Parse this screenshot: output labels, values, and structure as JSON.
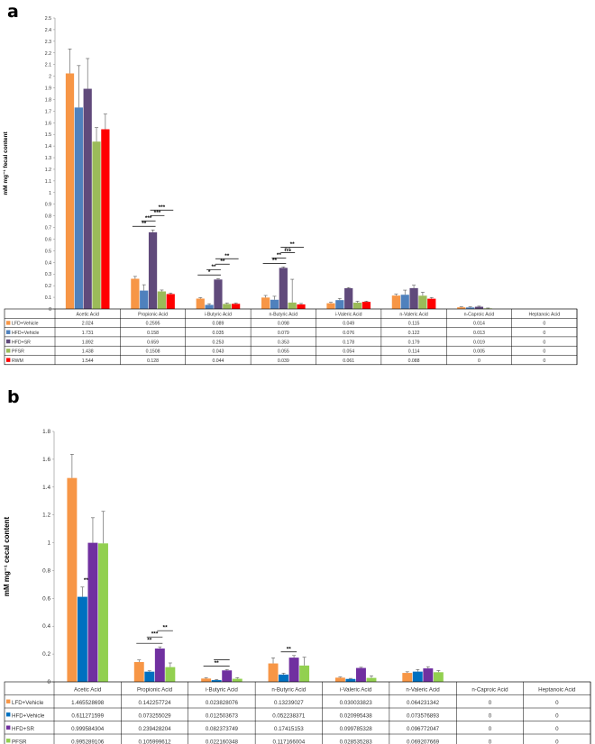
{
  "chart_data": [
    {
      "panel": "a",
      "type": "bar",
      "title": "",
      "ylabel": "mM mg⁻¹ fecal content",
      "xlabel": "",
      "ylim": [
        0,
        2.5
      ],
      "ytick_step": 0.1,
      "grid": false,
      "legend": "table-below",
      "categories": [
        "Acetic Acid",
        "Propionic Acid",
        "i-Butyric Acid",
        "n-Butyric Acid",
        "i-Valeric Acid",
        "n-Valeric Acid",
        "n-Caproic Acid",
        "Heptanoic Acid"
      ],
      "series": [
        {
          "name": "LFD+Vehicle",
          "color": "#f79646",
          "values": [
            2.024,
            0.2595,
            0.089,
            0.098,
            0.049,
            0.115,
            0.014,
            0
          ],
          "labels": [
            "2.024",
            "0.2595",
            "0.089",
            "0.098",
            "0.049",
            "0.115",
            "0.014",
            "0"
          ],
          "errors": [
            0.21,
            0.02,
            0.008,
            0.018,
            0.008,
            0.012,
            0.004,
            0
          ]
        },
        {
          "name": "HFD+Vehicle",
          "color": "#4f81bd",
          "values": [
            1.731,
            0.158,
            0.035,
            0.079,
            0.076,
            0.122,
            0.013,
            0
          ],
          "labels": [
            "1.731",
            "0.158",
            "0.035",
            "0.079",
            "0.076",
            "0.122",
            "0.013",
            "0"
          ],
          "errors": [
            0.36,
            0.05,
            0.01,
            0.03,
            0.015,
            0.04,
            0.005,
            0
          ]
        },
        {
          "name": "HFD+SR",
          "color": "#604a7b",
          "values": [
            1.892,
            0.659,
            0.253,
            0.353,
            0.178,
            0.179,
            0.019,
            0
          ],
          "labels": [
            "1.892",
            "0.659",
            "0.253",
            "0.353",
            "0.178",
            "0.179",
            "0.019",
            "0"
          ],
          "errors": [
            0.26,
            0.02,
            0.008,
            0.008,
            0.006,
            0.025,
            0.005,
            0
          ]
        },
        {
          "name": "PFSR",
          "color": "#9bbb59",
          "values": [
            1.438,
            0.1508,
            0.043,
            0.055,
            0.054,
            0.114,
            0.005,
            0
          ],
          "labels": [
            "1.438",
            "0.1508",
            "0.043",
            "0.055",
            "0.054",
            "0.114",
            "0.005",
            "0"
          ],
          "errors": [
            0.12,
            0.012,
            0.008,
            0.2,
            0.012,
            0.03,
            0.003,
            0
          ]
        },
        {
          "name": "RWM",
          "color": "#ff0000",
          "values": [
            1.544,
            0.128,
            0.044,
            0.039,
            0.061,
            0.088,
            0,
            0
          ],
          "labels": [
            "1.544",
            "0.128",
            "0.044",
            "0.039",
            "0.061",
            "0.088",
            "0",
            "0"
          ],
          "errors": [
            0.13,
            0.008,
            0.006,
            0.008,
            0.006,
            0.01,
            0,
            0
          ]
        }
      ],
      "annotations": [
        {
          "cat": 1,
          "from": 0,
          "to": 2,
          "text": "**"
        },
        {
          "cat": 1,
          "from": 1,
          "to": 2,
          "text": "***"
        },
        {
          "cat": 1,
          "from": 2,
          "to": 3,
          "text": "***"
        },
        {
          "cat": 1,
          "from": 2,
          "to": 4,
          "text": "***"
        },
        {
          "cat": 2,
          "from": 0,
          "to": 2,
          "text": "*"
        },
        {
          "cat": 2,
          "from": 1,
          "to": 2,
          "text": "**"
        },
        {
          "cat": 2,
          "from": 2,
          "to": 3,
          "text": "**"
        },
        {
          "cat": 2,
          "from": 2,
          "to": 4,
          "text": "**"
        },
        {
          "cat": 3,
          "from": 0,
          "to": 2,
          "text": "**"
        },
        {
          "cat": 3,
          "from": 1,
          "to": 2,
          "text": "**"
        },
        {
          "cat": 3,
          "from": 2,
          "to": 3,
          "text": "ns"
        },
        {
          "cat": 3,
          "from": 2,
          "to": 4,
          "text": "**"
        }
      ]
    },
    {
      "panel": "b",
      "type": "bar",
      "title": "",
      "ylabel": "mM mg⁻¹ cecal content",
      "xlabel": "",
      "ylim": [
        0,
        1.8
      ],
      "ytick_step": 0.2,
      "grid": false,
      "legend": "table-below",
      "categories": [
        "Acetic Acid",
        "Propionic Acid",
        "i-Butyric Acid",
        "n-Butyric Acid",
        "i-Valeric Acid",
        "n-Valeric Acid",
        "n-Caproic Acid",
        "Heptanoic Acid"
      ],
      "series": [
        {
          "name": "LFD+Vehicle",
          "color": "#f79646",
          "values": [
            1.465528698,
            0.142257724,
            0.023828076,
            0.13239027,
            0.030033823,
            0.064231342,
            0,
            0
          ],
          "labels": [
            "1.465528698",
            "0.142257724",
            "0.023828076",
            "0.13239027",
            "0.030033823",
            "0.064231342",
            "0",
            "0"
          ],
          "errors": [
            0.17,
            0.015,
            0.005,
            0.04,
            0.005,
            0.008,
            0,
            0
          ]
        },
        {
          "name": "HFD+Vehicle",
          "color": "#0070c0",
          "values": [
            0.611271599,
            0.073255029,
            0.012503673,
            0.052238371,
            0.020995438,
            0.073576893,
            0,
            0
          ],
          "labels": [
            "0.611271599",
            "0.073255029",
            "0.012503673",
            "0.052238371",
            "0.020995438",
            "0.073576893",
            "0",
            "0"
          ],
          "errors": [
            0.07,
            0.006,
            0.004,
            0.01,
            0.004,
            0.015,
            0,
            0
          ]
        },
        {
          "name": "HFD+SR",
          "color": "#7030a0",
          "values": [
            0.999584304,
            0.239428204,
            0.082373749,
            0.17415153,
            0.099785328,
            0.096772047,
            0,
            0
          ],
          "labels": [
            "0.999584304",
            "0.239428204",
            "0.082373749",
            "0.17415153",
            "0.099785328",
            "0.096772047",
            "0",
            "0"
          ],
          "errors": [
            0.18,
            0.012,
            0.005,
            0.015,
            0.005,
            0.012,
            0,
            0
          ]
        },
        {
          "name": "PFSR",
          "color": "#92d050",
          "values": [
            0.995289106,
            0.105999612,
            0.022160348,
            0.117166004,
            0.028535283,
            0.069207669,
            0,
            0
          ],
          "labels": [
            "0.995289106",
            "0.105999612",
            "0.022160348",
            "0.117166004",
            "0.028535283",
            "0.069207669",
            "0",
            "0"
          ],
          "errors": [
            0.23,
            0.03,
            0.008,
            0.06,
            0.015,
            0.012,
            0,
            0
          ]
        }
      ],
      "annotations": [
        {
          "cat": 0,
          "from": 1,
          "to": 1,
          "text": "**"
        },
        {
          "cat": 1,
          "from": 0,
          "to": 2,
          "text": "**"
        },
        {
          "cat": 1,
          "from": 1,
          "to": 2,
          "text": "***"
        },
        {
          "cat": 1,
          "from": 2,
          "to": 3,
          "text": "**"
        },
        {
          "cat": 2,
          "from": 0,
          "to": 2,
          "text": "**"
        },
        {
          "cat": 2,
          "from": 1,
          "to": 2,
          "text": ""
        },
        {
          "cat": 3,
          "from": 1,
          "to": 2,
          "text": "**"
        }
      ]
    }
  ]
}
